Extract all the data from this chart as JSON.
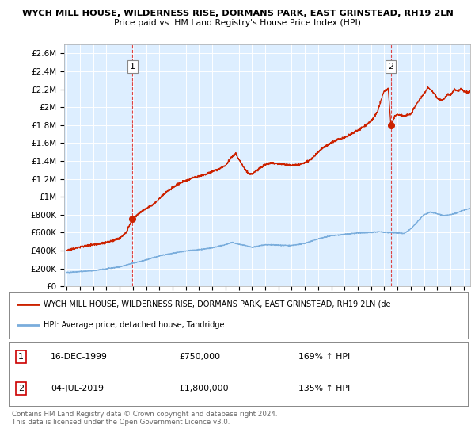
{
  "title": "WYCH MILL HOUSE, WILDERNESS RISE, DORMANS PARK, EAST GRINSTEAD, RH19 2LN",
  "subtitle": "Price paid vs. HM Land Registry's House Price Index (HPI)",
  "ylabel_ticks": [
    "£0",
    "£200K",
    "£400K",
    "£600K",
    "£800K",
    "£1M",
    "£1.2M",
    "£1.4M",
    "£1.6M",
    "£1.8M",
    "£2M",
    "£2.2M",
    "£2.4M",
    "£2.6M"
  ],
  "ytick_values": [
    0,
    200000,
    400000,
    600000,
    800000,
    1000000,
    1200000,
    1400000,
    1600000,
    1800000,
    2000000,
    2200000,
    2400000,
    2600000
  ],
  "ylim": [
    0,
    2700000
  ],
  "hpi_color": "#7aaddc",
  "price_color": "#cc2200",
  "sale1_date_num": 1999.96,
  "sale1_price": 750000,
  "sale1_label": "1",
  "sale1_hpi_pct": "169% ↑ HPI",
  "sale1_date_str": "16-DEC-1999",
  "sale2_date_num": 2019.5,
  "sale2_price": 1800000,
  "sale2_label": "2",
  "sale2_hpi_pct": "135% ↑ HPI",
  "sale2_date_str": "04-JUL-2019",
  "legend_line1": "WYCH MILL HOUSE, WILDERNESS RISE, DORMANS PARK, EAST GRINSTEAD, RH19 2LN (de",
  "legend_line2": "HPI: Average price, detached house, Tandridge",
  "footer": "Contains HM Land Registry data © Crown copyright and database right 2024.\nThis data is licensed under the Open Government Licence v3.0.",
  "plot_bg_color": "#ddeeff",
  "grid_color": "#ffffff",
  "xstart": 1994.8,
  "xend": 2025.5,
  "hpi_base_points": [
    [
      1995.0,
      155000
    ],
    [
      1996.0,
      165000
    ],
    [
      1997.0,
      175000
    ],
    [
      1998.0,
      195000
    ],
    [
      1999.0,
      218000
    ],
    [
      2000.0,
      258000
    ],
    [
      2001.0,
      295000
    ],
    [
      2002.0,
      340000
    ],
    [
      2003.0,
      370000
    ],
    [
      2004.0,
      395000
    ],
    [
      2005.0,
      410000
    ],
    [
      2006.0,
      430000
    ],
    [
      2007.0,
      465000
    ],
    [
      2007.5,
      490000
    ],
    [
      2008.0,
      470000
    ],
    [
      2008.5,
      455000
    ],
    [
      2009.0,
      435000
    ],
    [
      2009.5,
      450000
    ],
    [
      2010.0,
      465000
    ],
    [
      2011.0,
      460000
    ],
    [
      2012.0,
      455000
    ],
    [
      2013.0,
      480000
    ],
    [
      2014.0,
      530000
    ],
    [
      2015.0,
      565000
    ],
    [
      2016.0,
      580000
    ],
    [
      2017.0,
      595000
    ],
    [
      2018.0,
      600000
    ],
    [
      2018.5,
      610000
    ],
    [
      2019.0,
      605000
    ],
    [
      2019.5,
      600000
    ],
    [
      2020.0,
      595000
    ],
    [
      2020.5,
      590000
    ],
    [
      2021.0,
      640000
    ],
    [
      2021.5,
      720000
    ],
    [
      2022.0,
      800000
    ],
    [
      2022.5,
      830000
    ],
    [
      2023.0,
      810000
    ],
    [
      2023.5,
      790000
    ],
    [
      2024.0,
      800000
    ],
    [
      2024.5,
      820000
    ],
    [
      2025.0,
      850000
    ],
    [
      2025.5,
      870000
    ]
  ],
  "price_base_points": [
    [
      1995.0,
      405000
    ],
    [
      1995.5,
      420000
    ],
    [
      1996.0,
      440000
    ],
    [
      1996.5,
      455000
    ],
    [
      1997.0,
      465000
    ],
    [
      1997.5,
      475000
    ],
    [
      1998.0,
      490000
    ],
    [
      1998.5,
      510000
    ],
    [
      1999.0,
      540000
    ],
    [
      1999.5,
      600000
    ],
    [
      1999.96,
      750000
    ],
    [
      2000.5,
      820000
    ],
    [
      2001.0,
      870000
    ],
    [
      2001.5,
      910000
    ],
    [
      2002.0,
      980000
    ],
    [
      2002.5,
      1050000
    ],
    [
      2003.0,
      1100000
    ],
    [
      2003.5,
      1150000
    ],
    [
      2004.0,
      1180000
    ],
    [
      2004.5,
      1210000
    ],
    [
      2005.0,
      1230000
    ],
    [
      2005.5,
      1250000
    ],
    [
      2006.0,
      1280000
    ],
    [
      2006.5,
      1310000
    ],
    [
      2007.0,
      1350000
    ],
    [
      2007.5,
      1450000
    ],
    [
      2007.8,
      1480000
    ],
    [
      2008.0,
      1420000
    ],
    [
      2008.3,
      1350000
    ],
    [
      2008.7,
      1260000
    ],
    [
      2009.0,
      1250000
    ],
    [
      2009.5,
      1310000
    ],
    [
      2010.0,
      1360000
    ],
    [
      2010.5,
      1380000
    ],
    [
      2011.0,
      1370000
    ],
    [
      2011.5,
      1360000
    ],
    [
      2012.0,
      1350000
    ],
    [
      2012.5,
      1360000
    ],
    [
      2013.0,
      1380000
    ],
    [
      2013.5,
      1420000
    ],
    [
      2014.0,
      1500000
    ],
    [
      2014.5,
      1560000
    ],
    [
      2015.0,
      1600000
    ],
    [
      2015.5,
      1640000
    ],
    [
      2016.0,
      1660000
    ],
    [
      2016.5,
      1700000
    ],
    [
      2017.0,
      1740000
    ],
    [
      2017.5,
      1790000
    ],
    [
      2018.0,
      1840000
    ],
    [
      2018.5,
      1950000
    ],
    [
      2018.8,
      2100000
    ],
    [
      2019.0,
      2180000
    ],
    [
      2019.3,
      2200000
    ],
    [
      2019.5,
      1800000
    ],
    [
      2019.8,
      1900000
    ],
    [
      2020.0,
      1920000
    ],
    [
      2020.5,
      1900000
    ],
    [
      2021.0,
      1920000
    ],
    [
      2021.5,
      2050000
    ],
    [
      2022.0,
      2150000
    ],
    [
      2022.3,
      2220000
    ],
    [
      2022.5,
      2200000
    ],
    [
      2022.8,
      2150000
    ],
    [
      2023.0,
      2100000
    ],
    [
      2023.3,
      2080000
    ],
    [
      2023.5,
      2090000
    ],
    [
      2023.8,
      2150000
    ],
    [
      2024.0,
      2130000
    ],
    [
      2024.3,
      2200000
    ],
    [
      2024.5,
      2180000
    ],
    [
      2024.8,
      2200000
    ],
    [
      2025.0,
      2180000
    ],
    [
      2025.3,
      2160000
    ],
    [
      2025.5,
      2180000
    ]
  ]
}
